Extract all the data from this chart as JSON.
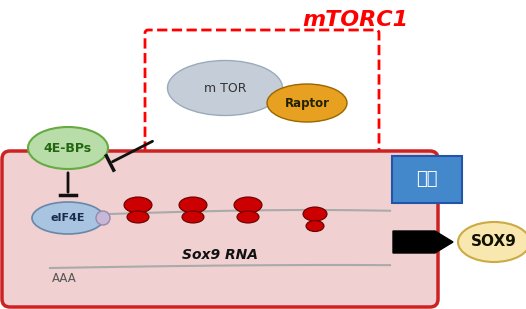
{
  "bg_color": "#ffffff",
  "title": "mTORC1",
  "title_color": "#ff0000",
  "title_fontsize": 16,
  "mtor_label": "m TOR",
  "raptor_label": "Raptor",
  "ebps_label": "4E-BPs",
  "eif4e_label": "eIF4E",
  "sox9rna_label": "Sox9 RNA",
  "aaa_label": "AAA",
  "honyaku_label": "翻訳",
  "sox9_label": "SOX9",
  "mtor_color": "#c5cdd8",
  "raptor_color": "#e8a020",
  "ebps_color": "#b8dda8",
  "eif4e_color": "#a8c4e0",
  "cell_fill": "#f0d0d0",
  "cell_edge": "#cc2222",
  "ribosome_color": "#cc0000",
  "honyaku_color": "#4488cc",
  "sox9_color": "#f8e8b0",
  "arrow_color": "#111111",
  "inhibit_color": "#111111",
  "mrna_color": "#aaaaaa",
  "cap_color": "#c8b8d8"
}
